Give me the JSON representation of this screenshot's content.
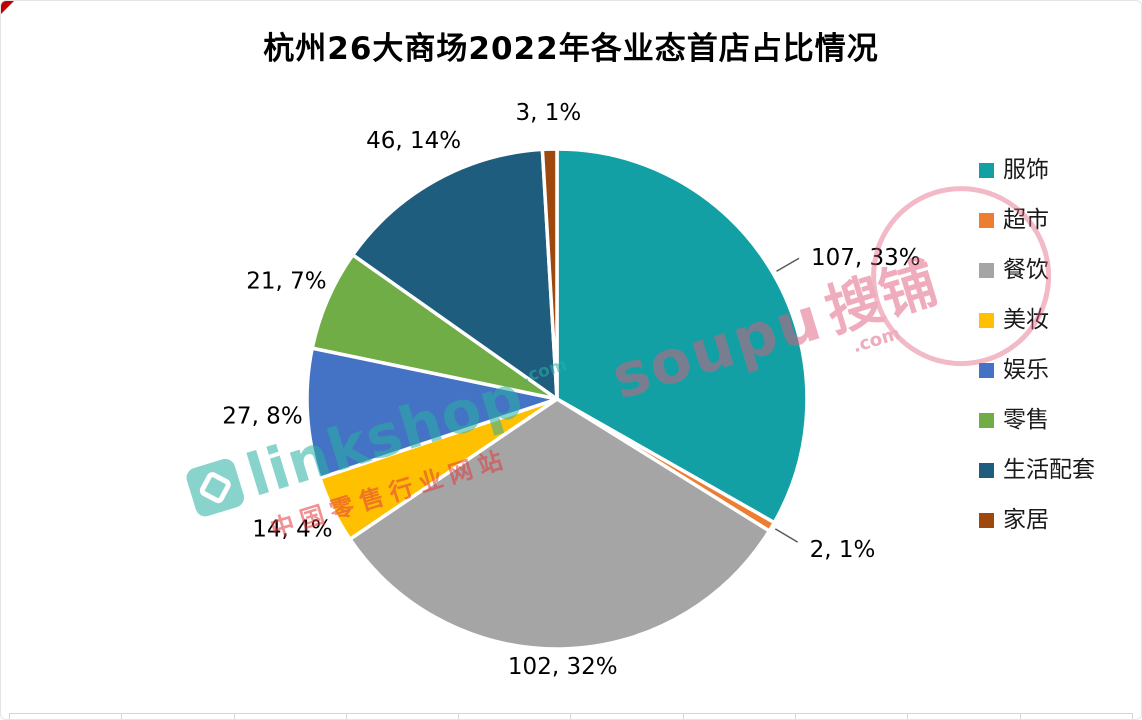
{
  "chart_data": {
    "type": "pie",
    "title": "杭州26大商场2022年各业态首店占比情况",
    "legend_position": "right",
    "start_angle_deg": -90,
    "direction": "clockwise",
    "total": 322,
    "slices": [
      {
        "label": "服饰",
        "value": 107,
        "percent": 33,
        "label_text": "107, 33%",
        "color": "#12A0A5",
        "leader": true
      },
      {
        "label": "超市",
        "value": 2,
        "percent": 1,
        "label_text": "2, 1%",
        "color": "#ED7D31",
        "leader": true
      },
      {
        "label": "餐饮",
        "value": 102,
        "percent": 32,
        "label_text": "102, 32%",
        "color": "#A5A5A5",
        "leader": false
      },
      {
        "label": "美妆",
        "value": 14,
        "percent": 4,
        "label_text": "14, 4%",
        "color": "#FFC000",
        "leader": false
      },
      {
        "label": "娱乐",
        "value": 27,
        "percent": 8,
        "label_text": "27, 8%",
        "color": "#4472C4",
        "leader": false
      },
      {
        "label": "零售",
        "value": 21,
        "percent": 7,
        "label_text": "21, 7%",
        "color": "#70AD47",
        "leader": false
      },
      {
        "label": "生活配套",
        "value": 46,
        "percent": 14,
        "label_text": "46, 14%",
        "color": "#1F5D7E",
        "leader": false
      },
      {
        "label": "家居",
        "value": 3,
        "percent": 1,
        "label_text": "3, 1%",
        "color": "#9E480E",
        "leader": false
      }
    ]
  },
  "watermarks": {
    "linkshop": {
      "brand": "linkshop",
      "dotcom": ".com",
      "tagline": "中国零售行业网站",
      "color": "#29B0A5",
      "tagline_color": "#E23A3E"
    },
    "soupu": {
      "brand": "soupu",
      "brand_cn": "搜铺",
      "dotcom": ".com",
      "color": "#E05C7D"
    }
  }
}
